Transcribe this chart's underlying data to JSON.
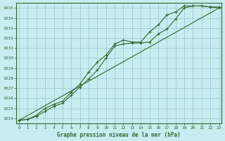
{
  "xlabel": "Graphe pression niveau de la mer (hPa)",
  "ylim": [
    1023.5,
    1035.5
  ],
  "xlim": [
    -0.3,
    23.3
  ],
  "yticks": [
    1024,
    1025,
    1026,
    1027,
    1028,
    1029,
    1030,
    1031,
    1032,
    1033,
    1034,
    1035
  ],
  "xticks": [
    0,
    1,
    2,
    3,
    4,
    5,
    6,
    7,
    8,
    9,
    10,
    11,
    12,
    13,
    14,
    15,
    16,
    17,
    18,
    19,
    20,
    21,
    22,
    23
  ],
  "bg_color": "#c6eef0",
  "grid_color": "#9ac4cc",
  "line_color": "#2d6a2d",
  "line1_x": [
    0,
    1,
    2,
    3,
    4,
    5,
    6,
    7,
    8,
    9,
    10,
    11,
    12,
    13,
    14,
    15,
    16,
    17,
    18,
    19,
    20,
    21,
    22,
    23
  ],
  "line1_y": [
    1023.8,
    1023.9,
    1024.2,
    1024.7,
    1025.2,
    1025.5,
    1026.3,
    1027.1,
    1027.9,
    1028.8,
    1030.0,
    1031.2,
    1031.4,
    1031.5,
    1031.5,
    1031.6,
    1032.4,
    1032.9,
    1033.9,
    1035.0,
    1035.2,
    1035.2,
    1035.1,
    1035.0
  ],
  "line2_x": [
    0,
    1,
    2,
    3,
    4,
    5,
    6,
    7,
    8,
    9,
    10,
    11,
    12,
    13,
    14,
    15,
    16,
    17,
    18,
    19,
    20,
    21,
    22,
    23
  ],
  "line2_y": [
    1023.8,
    1023.9,
    1024.3,
    1025.0,
    1025.4,
    1025.7,
    1026.6,
    1027.4,
    1028.6,
    1029.6,
    1030.3,
    1031.4,
    1031.8,
    1031.6,
    1031.6,
    1032.6,
    1033.3,
    1034.3,
    1034.6,
    1035.2,
    1035.2,
    1035.2,
    1035.1,
    1035.1
  ],
  "line3_x": [
    0,
    23
  ],
  "line3_y": [
    1023.8,
    1035.0
  ]
}
